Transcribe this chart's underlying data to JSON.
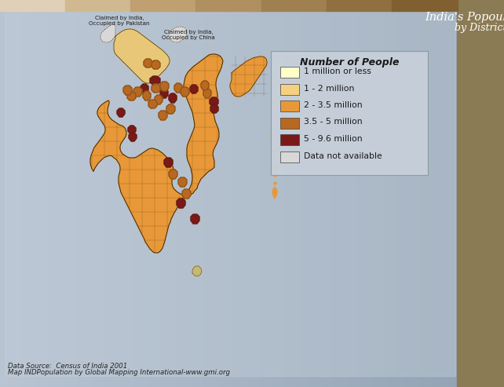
{
  "title_line1": "India's Popoulation",
  "title_line2": "by District",
  "data_source_line1": "Data Source:  Census of India 2001",
  "data_source_line2": "Map INDPopulation by Global Mapping International-www.gmi.org",
  "legend_title": "Number of People",
  "legend_items": [
    {
      "label": "1 million or less",
      "color": "#FFFFC8"
    },
    {
      "label": "1 - 2 million",
      "color": "#F5D080"
    },
    {
      "label": "2 - 3.5 million",
      "color": "#E89838"
    },
    {
      "label": "3.5 - 5 million",
      "color": "#B86820"
    },
    {
      "label": "5 - 9.6 million",
      "color": "#7B1818"
    },
    {
      "label": "Data not available",
      "color": "#D8D8D8"
    }
  ],
  "bg_left_color": "#B8C4D2",
  "bg_right_color": "#A0AEBA",
  "right_panel_color": "#8B7B55",
  "top_strip": [
    "#E0D0B8",
    "#D0B890",
    "#C0A070",
    "#B09060",
    "#A08050",
    "#907040",
    "#806030"
  ],
  "title_color": "#FFFFFF",
  "annotation_color": "#2A2A2A",
  "legend_bg": "#C8D0D8",
  "legend_border": "#909898",
  "map_border": "#3A2808",
  "map_fill_default": "#E89838",
  "disputed_fill": "#D8D8D8",
  "fig_width": 6.42,
  "fig_height": 4.93,
  "dpi": 100
}
